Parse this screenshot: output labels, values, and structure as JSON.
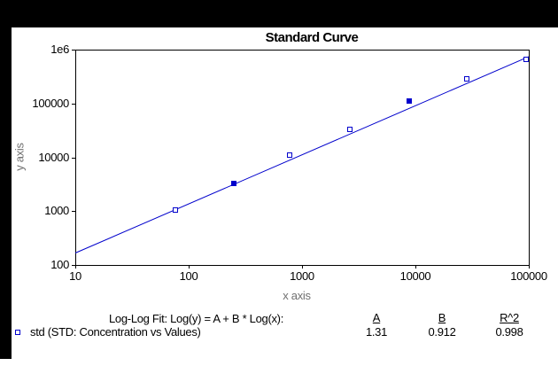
{
  "frame": {
    "background": "#000000",
    "canvas": "#ffffff"
  },
  "chart_data": {
    "type": "scatter",
    "title": "Standard Curve",
    "xlabel": "x axis",
    "ylabel": "y axis",
    "xscale": "log",
    "yscale": "log",
    "xlim": [
      10,
      100000
    ],
    "ylim": [
      100,
      1000000
    ],
    "grid": false,
    "x_ticks": [
      10,
      100,
      1000,
      10000,
      100000
    ],
    "x_tick_labels": [
      "10",
      "100",
      "1000",
      "10000",
      "100000"
    ],
    "y_ticks": [
      100,
      1000,
      10000,
      100000,
      1000000
    ],
    "y_tick_labels": [
      "100",
      "1000",
      "10000",
      "100000",
      "1e6"
    ],
    "series": [
      {
        "name": "std (STD: Concentration vs Values)",
        "color": "#0000cc",
        "marker": "open-square",
        "points": [
          {
            "x": 76,
            "y": 1050,
            "filled": false
          },
          {
            "x": 250,
            "y": 3300,
            "filled": true
          },
          {
            "x": 780,
            "y": 10800,
            "filled": false
          },
          {
            "x": 2650,
            "y": 33000,
            "filled": false
          },
          {
            "x": 8800,
            "y": 110000,
            "filled": true
          },
          {
            "x": 28600,
            "y": 285000,
            "filled": false
          },
          {
            "x": 94000,
            "y": 650000,
            "filled": false
          }
        ]
      }
    ],
    "fit": {
      "label": "Log-Log Fit: Log(y) = A + B * Log(x):",
      "A": 1.31,
      "B": 0.912,
      "params": [
        {
          "header": "A",
          "value": "1.31"
        },
        {
          "header": "B",
          "value": "0.912"
        },
        {
          "header": "R^2",
          "value": "0.998"
        }
      ]
    }
  },
  "colors": {
    "series_blue": "#0000cc",
    "axis_label_gray": "#707070",
    "axis_black": "#000000"
  }
}
